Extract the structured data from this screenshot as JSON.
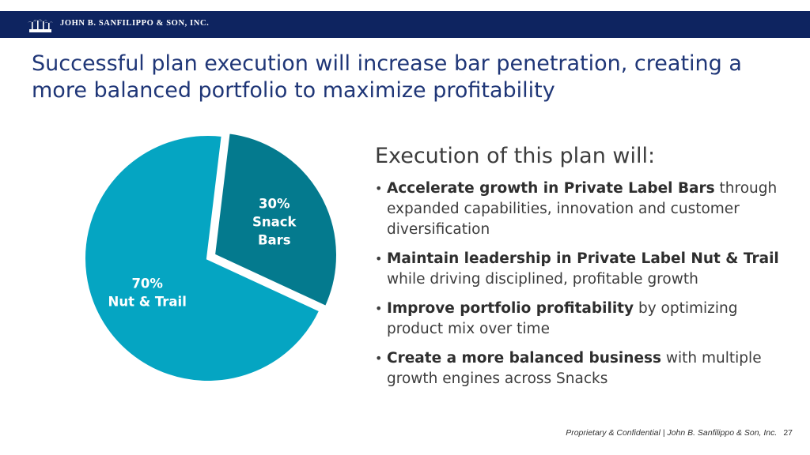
{
  "header": {
    "company": "JOHN B. SANFILIPPO & SON, INC.",
    "logo_icon": "palm-trees-logo-icon",
    "bar_color": "#0e2460"
  },
  "slide": {
    "title": "Successful plan execution will increase bar penetration, creating a more balanced portfolio to maximize profitability"
  },
  "chart_data": {
    "type": "pie",
    "slices": [
      {
        "pct_label": "30%",
        "label_lines": [
          "Snack",
          "Bars"
        ],
        "value": 30,
        "color": "#047a8e"
      },
      {
        "pct_label": "70%",
        "label_lines": [
          "Nut & Trail"
        ],
        "value": 70,
        "color": "#05a5c2"
      }
    ]
  },
  "right": {
    "heading": "Execution of this plan will:",
    "bullets": [
      {
        "bold": "Accelerate growth in Private Label Bars",
        "rest": " through expanded capabilities, innovation and customer diversification"
      },
      {
        "bold": "Maintain leadership in Private Label Nut & Trail",
        "rest": " while driving disciplined, profitable growth"
      },
      {
        "bold": "Improve portfolio profitability",
        "rest": " by optimizing product mix over time"
      },
      {
        "bold": "Create a more balanced business",
        "rest": " with multiple growth engines across Snacks"
      }
    ]
  },
  "footer": {
    "text": "Proprietary & Confidential | John B. Sanfilippo & Son, Inc.",
    "page": "27"
  }
}
